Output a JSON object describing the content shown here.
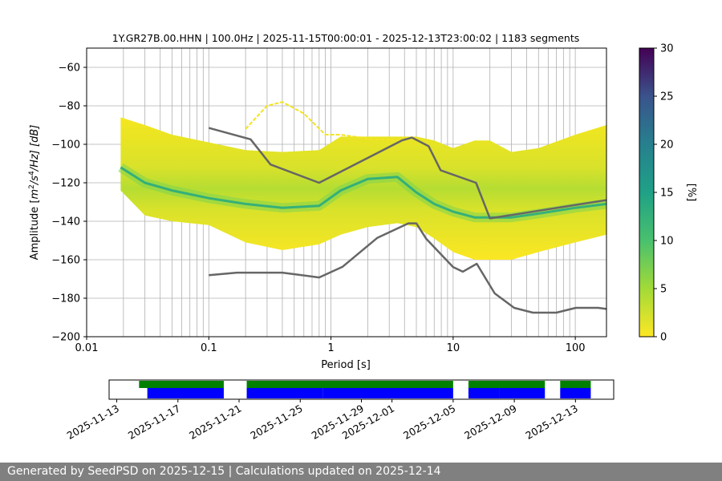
{
  "chart_data": [
    {
      "type": "heatmap",
      "title": "1Y.GR27B.00.HHN | 100.0Hz | 2025-11-15T00:00:01 - 2025-12-13T23:00:02 | 1183 segments",
      "xlabel": "Period [s]",
      "ylabel": "Amplitude [m²/s⁴/Hz] [dB]",
      "ylabel_base": "Amplitude [",
      "ylabel_m": "m",
      "ylabel_s": "/s",
      "ylabel_hz": "/Hz] [dB]",
      "ylabel_exp2": "2",
      "ylabel_exp4": "4",
      "x_scale": "log",
      "xlim": [
        0.01,
        180
      ],
      "ylim": [
        -200,
        -50
      ],
      "xticks": [
        0.01,
        0.1,
        1,
        10,
        100
      ],
      "xtick_labels": [
        "0.01",
        "0.1",
        "1",
        "10",
        "100"
      ],
      "yticks": [
        -200,
        -180,
        -160,
        -140,
        -120,
        -100,
        -80,
        -60
      ],
      "ytick_labels": [
        "−200",
        "−180",
        "−160",
        "−140",
        "−120",
        "−100",
        "−80",
        "−60"
      ],
      "grid": true,
      "colorbar": {
        "label": "[%]",
        "range": [
          0,
          30
        ],
        "ticks": [
          0,
          5,
          10,
          15,
          20,
          25,
          30
        ],
        "tick_labels": [
          "0",
          "5",
          "10",
          "15",
          "20",
          "25",
          "30"
        ],
        "colormap": "viridis"
      },
      "psd_band": {
        "period": [
          0.019,
          0.03,
          0.05,
          0.1,
          0.2,
          0.4,
          0.8,
          1.2,
          2,
          3.5,
          5,
          7,
          10,
          15,
          20,
          30,
          50,
          100,
          180
        ],
        "upper": [
          -86,
          -90,
          -95,
          -99,
          -103,
          -104,
          -103,
          -96,
          -96,
          -96,
          -96,
          -98,
          -102,
          -98,
          -98,
          -104,
          -102,
          -95,
          -90
        ],
        "lower": [
          -124,
          -137,
          -140,
          -142,
          -151,
          -155,
          -152,
          -147,
          -143,
          -141,
          -143,
          -149,
          -156,
          -160,
          -160,
          -160,
          -156,
          -151,
          -147
        ],
        "mode": [
          -112,
          -120,
          -124,
          -128,
          -131,
          -133,
          -132,
          -124,
          -118,
          -117,
          -125,
          -131,
          -135,
          -138,
          -138,
          -138,
          -136,
          -133,
          -131
        ],
        "outlier_curve": {
          "period": [
            0.2,
            0.3,
            0.4,
            0.6,
            0.9,
            1.2,
            2,
            3.5,
            5
          ],
          "values": [
            -92,
            -80,
            -78,
            -84,
            -95,
            -95,
            -97,
            -98,
            -97
          ]
        }
      },
      "noise_models": [
        {
          "name": "NHNM",
          "period": [
            0.1,
            0.22,
            0.32,
            0.8,
            3.8,
            4.6,
            6.3,
            7.9,
            15.4,
            20,
            180
          ],
          "values": [
            -91.5,
            -97.4,
            -110.5,
            -120,
            -98,
            -96.5,
            -101,
            -113.5,
            -120,
            -138.5,
            -129
          ]
        },
        {
          "name": "NLNM",
          "period": [
            0.1,
            0.17,
            0.4,
            0.8,
            1.24,
            2.4,
            4.3,
            5,
            6,
            10,
            12,
            15.6,
            21.9,
            31.6,
            45,
            70,
            101,
            154,
            180
          ],
          "values": [
            -168,
            -166.7,
            -166.7,
            -169.2,
            -163.7,
            -148.6,
            -141.1,
            -141.1,
            -149,
            -163.8,
            -166.2,
            -162.1,
            -177.5,
            -185,
            -187.5,
            -187.5,
            -185,
            -185,
            -185.6
          ]
        }
      ]
    },
    {
      "type": "timeline",
      "date_tick_labels": [
        "2025-11-13",
        "2025-11-17",
        "2025-11-21",
        "2025-11-25",
        "2025-11-29",
        "2025-12-01",
        "2025-12-05",
        "2025-12-09",
        "2025-12-13"
      ],
      "available_segments": [
        [
          "2025-11-14T11:00",
          "2025-11-20T00:00"
        ],
        [
          "2025-11-21T12:00",
          "2025-12-05T00:00"
        ],
        [
          "2025-12-06T00:00",
          "2025-12-11T00:00"
        ],
        [
          "2025-12-12T00:00",
          "2025-12-14T00:00"
        ]
      ],
      "psd_segments": [
        [
          "2025-11-15T00:00",
          "2025-11-20T00:00"
        ],
        [
          "2025-11-21T12:00",
          "2025-11-26T12:00"
        ],
        [
          "2025-11-26T12:00",
          "2025-12-05T00:00"
        ],
        [
          "2025-12-06T00:00",
          "2025-12-08T00:00"
        ],
        [
          "2025-12-08T00:00",
          "2025-12-11T00:00"
        ],
        [
          "2025-12-12T00:00",
          "2025-12-14T00:00"
        ]
      ],
      "available_color": "#008000",
      "psd_color": "#0000ff"
    }
  ],
  "footer": {
    "text": "Generated by SeedPSD on 2025-12-15 | Calculations updated on 2025-12-14"
  }
}
